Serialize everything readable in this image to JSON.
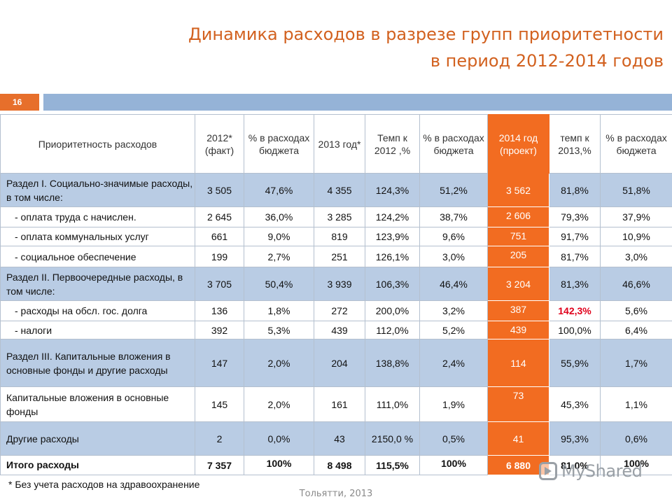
{
  "title": {
    "line1": "Динамика расходов в разрезе групп приоритетности",
    "line2": "в период 2012-2014 годов"
  },
  "page_number": "16",
  "table": {
    "headers": [
      "Приоритетность расходов",
      "2012* (факт)",
      "% в расходах бюджета",
      "2013 год*",
      "Темп к 2012 ,%",
      "% в расходах бюджета",
      "2014 год (проект)",
      "темп к 2013,%",
      "% в расходах бюджета"
    ],
    "rows": [
      {
        "name": "Раздел I. Социально-значимые расходы, в том числе:",
        "v2012": "3 505",
        "p2012": "47,6%",
        "v2013": "4 355",
        "t2013": "124,3%",
        "p2013": "51,2%",
        "v2014": "3 562",
        "t2014": "81,8%",
        "p2014": "51,8%"
      },
      {
        "name": "- оплата труда с начислен.",
        "v2012": "2 645",
        "p2012": "36,0%",
        "v2013": "3 285",
        "t2013": "124,2%",
        "p2013": "38,7%",
        "v2014": "2 606",
        "t2014": "79,3%",
        "p2014": "37,9%"
      },
      {
        "name": "- оплата коммунальных услуг",
        "v2012": "661",
        "p2012": "9,0%",
        "v2013": "819",
        "t2013": "123,9%",
        "p2013": "9,6%",
        "v2014": "751",
        "t2014": "91,7%",
        "p2014": "10,9%"
      },
      {
        "name": "- социальное обеспечение",
        "v2012": "199",
        "p2012": "2,7%",
        "v2013": "251",
        "t2013": "126,1%",
        "p2013": "3,0%",
        "v2014": "205",
        "t2014": "81,7%",
        "p2014": "3,0%"
      },
      {
        "name": "Раздел II. Первоочередные расходы, в том числе:",
        "v2012": "3 705",
        "p2012": "50,4%",
        "v2013": "3 939",
        "t2013": "106,3%",
        "p2013": "46,4%",
        "v2014": "3 204",
        "t2014": "81,3%",
        "p2014": "46,6%"
      },
      {
        "name": "- расходы на обсл. гос. долга",
        "v2012": "136",
        "p2012": "1,8%",
        "v2013": "272",
        "t2013": "200,0%",
        "p2013": "3,2%",
        "v2014": "387",
        "t2014": "142,3%",
        "p2014": "5,6%"
      },
      {
        "name": "- налоги",
        "v2012": "392",
        "p2012": "5,3%",
        "v2013": "439",
        "t2013": "112,0%",
        "p2013": "5,2%",
        "v2014": "439",
        "t2014": "100,0%",
        "p2014": "6,4%"
      },
      {
        "name": "Раздел III. Капитальные вложения в основные фонды и другие расходы",
        "v2012": "147",
        "p2012": "2,0%",
        "v2013": "204",
        "t2013": "138,8%",
        "p2013": "2,4%",
        "v2014": "114",
        "t2014": "55,9%",
        "p2014": "1,7%"
      },
      {
        "name": "Капитальные вложения в основные фонды",
        "v2012": "145",
        "p2012": "2,0%",
        "v2013": "161",
        "t2013": "111,0%",
        "p2013": "1,9%",
        "v2014": "73",
        "t2014": "45,3%",
        "p2014": "1,1%"
      },
      {
        "name": "Другие расходы",
        "v2012": "2",
        "p2012": "0,0%",
        "v2013": "43",
        "t2013": "2150,0 %",
        "p2013": "0,5%",
        "v2014": "41",
        "t2014": "95,3%",
        "p2014": "0,6%"
      },
      {
        "name": "Итого расходы",
        "v2012": "7 357",
        "p2012": "100%",
        "v2013": "8 498",
        "t2013": "115,5%",
        "p2013": "100%",
        "v2014": "6 880",
        "t2014": "81,0%",
        "p2014": "100%"
      }
    ]
  },
  "footnote": "* Без учета расходов на здравоохранение",
  "city": "Тольятти, 2013",
  "watermark": "MyShared",
  "colors": {
    "title": "#d2611f",
    "accent_orange": "#f26c21",
    "section_blue": "#b9cce4",
    "bar_blue": "#95b3d7",
    "highlight_red": "#e0001b"
  }
}
